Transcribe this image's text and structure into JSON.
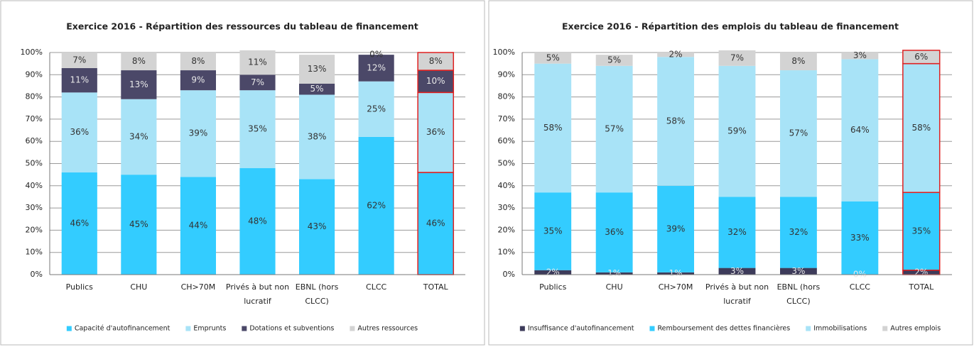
{
  "chart_data": [
    {
      "type": "stacked_bar",
      "title": "Exercice 2016 - Répartition des ressources du tableau de financement",
      "categories": [
        "Publics",
        "CHU",
        "CH>70M",
        "Privés à but non lucratif",
        "EBNL (hors CLCC)",
        "CLCC",
        "TOTAL"
      ],
      "series": [
        {
          "name": "Capacité d'autofinancement",
          "color": "#33ccff",
          "values": [
            46,
            45,
            44,
            48,
            43,
            62,
            46
          ],
          "value_labels": [
            "46%",
            "45%",
            "44%",
            "48%",
            "43%",
            "62%",
            "46%"
          ]
        },
        {
          "name": "Emprunts",
          "color": "#a8e3f7",
          "values": [
            36,
            34,
            39,
            35,
            38,
            25,
            36
          ],
          "value_labels": [
            "36%",
            "34%",
            "39%",
            "35%",
            "38%",
            "25%",
            "36%"
          ]
        },
        {
          "name": "Dotations et subventions",
          "color": "#4b4868",
          "values": [
            11,
            13,
            9,
            7,
            5,
            12,
            10
          ],
          "value_labels": [
            "11%",
            "13%",
            "9%",
            "7%",
            "5%",
            "12%",
            "10%"
          ]
        },
        {
          "name": "Autres ressources",
          "color": "#d3d3d3",
          "values": [
            7,
            8,
            8,
            11,
            13,
            0,
            8
          ],
          "value_labels": [
            "7%",
            "8%",
            "8%",
            "11%",
            "13%",
            "0%",
            "8%"
          ]
        }
      ],
      "ylim": [
        0,
        100
      ],
      "yticks": [
        {
          "value": 0,
          "label": "0%"
        },
        {
          "value": 10,
          "label": "10%"
        },
        {
          "value": 20,
          "label": "20%"
        },
        {
          "value": 30,
          "label": "30%"
        },
        {
          "value": 40,
          "label": "40%"
        },
        {
          "value": 50,
          "label": "50%"
        },
        {
          "value": 60,
          "label": "60%"
        },
        {
          "value": 70,
          "label": "70%"
        },
        {
          "value": 80,
          "label": "80%"
        },
        {
          "value": 90,
          "label": "90%"
        },
        {
          "value": 100,
          "label": "100%"
        }
      ],
      "grid": true,
      "legend": "bottom",
      "highlight": {
        "category": 6,
        "color": "#e02020"
      }
    },
    {
      "type": "stacked_bar",
      "title": "Exercice 2016 - Répartition des emplois du tableau de financement",
      "categories": [
        "Publics",
        "CHU",
        "CH>70M",
        "Privés à but non lucratif",
        "EBNL (hors CLCC)",
        "CLCC",
        "TOTAL"
      ],
      "series": [
        {
          "name": "Insuffisance d'autofinancement",
          "color": "#3d3b5a",
          "values": [
            2,
            1,
            1,
            3,
            3,
            0,
            2
          ],
          "value_labels": [
            "2%",
            "1%",
            "1%",
            "3%",
            "3%",
            "0%",
            "2%"
          ]
        },
        {
          "name": "Remboursement des dettes financières",
          "color": "#33ccff",
          "values": [
            35,
            36,
            39,
            32,
            32,
            33,
            35
          ],
          "value_labels": [
            "35%",
            "36%",
            "39%",
            "32%",
            "32%",
            "33%",
            "35%"
          ]
        },
        {
          "name": "Immobilisations",
          "color": "#a8e3f7",
          "values": [
            58,
            57,
            58,
            59,
            57,
            64,
            58
          ],
          "value_labels": [
            "58%",
            "57%",
            "58%",
            "59%",
            "57%",
            "64%",
            "58%"
          ]
        },
        {
          "name": "Autres emplois",
          "color": "#d3d3d3",
          "values": [
            5,
            5,
            2,
            7,
            8,
            3,
            6
          ],
          "value_labels": [
            "5%",
            "5%",
            "2%",
            "7%",
            "8%",
            "3%",
            "6%"
          ]
        }
      ],
      "ylim": [
        0,
        100
      ],
      "yticks": [
        {
          "value": 0,
          "label": "0%"
        },
        {
          "value": 10,
          "label": "10%"
        },
        {
          "value": 20,
          "label": "20%"
        },
        {
          "value": 30,
          "label": "30%"
        },
        {
          "value": 40,
          "label": "40%"
        },
        {
          "value": 50,
          "label": "50%"
        },
        {
          "value": 60,
          "label": "60%"
        },
        {
          "value": 70,
          "label": "70%"
        },
        {
          "value": 80,
          "label": "80%"
        },
        {
          "value": 90,
          "label": "90%"
        },
        {
          "value": 100,
          "label": "100%"
        }
      ],
      "grid": true,
      "legend": "bottom",
      "highlight": {
        "category": 6,
        "color": "#e02020"
      }
    }
  ]
}
